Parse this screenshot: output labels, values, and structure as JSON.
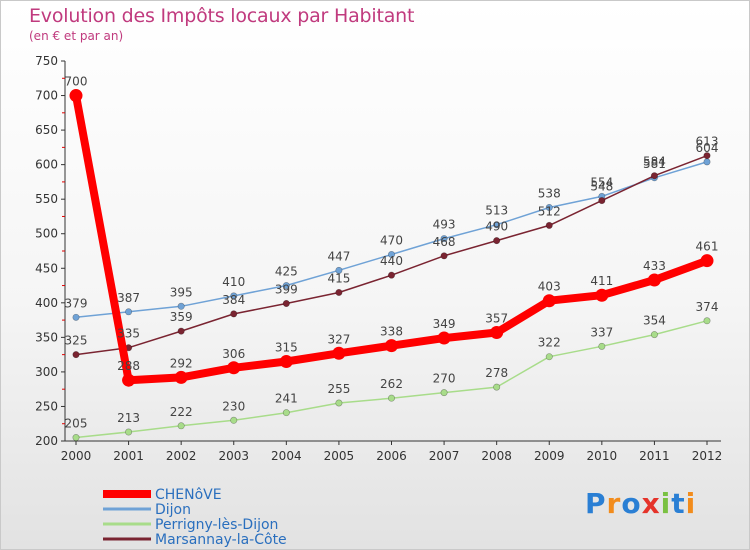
{
  "title": "Evolution des Impôts locaux par Habitant",
  "subtitle": "(en € et par an)",
  "logo": {
    "text": "Proxiti",
    "letters": [
      "P",
      "r",
      "o",
      "x",
      "i",
      "t",
      "i"
    ],
    "colors": [
      "#2a7fd4",
      "#f28c1c",
      "#2a7fd4",
      "#e5332a",
      "#7ac142",
      "#2a7fd4",
      "#f28c1c"
    ]
  },
  "chart_data": {
    "type": "line",
    "title": "Evolution des Impôts locaux par Habitant",
    "subtitle": "(en € et par an)",
    "xlabel": "",
    "ylabel": "",
    "x": [
      "2000",
      "2001",
      "2002",
      "2003",
      "2004",
      "2005",
      "2006",
      "2007",
      "2008",
      "2009",
      "2010",
      "2011",
      "2012"
    ],
    "ylim": [
      200,
      750
    ],
    "yticks": [
      200,
      250,
      300,
      350,
      400,
      450,
      500,
      550,
      600,
      650,
      700,
      750
    ],
    "grid": false,
    "legend_position": "bottom-left",
    "series": [
      {
        "name": "CHENôVE",
        "color": "#ff0000",
        "bold": true,
        "values": [
          700,
          288,
          292,
          306,
          315,
          327,
          338,
          349,
          357,
          403,
          411,
          433,
          461
        ]
      },
      {
        "name": "Dijon",
        "color": "#6fa2d6",
        "bold": false,
        "values": [
          379,
          387,
          395,
          410,
          425,
          447,
          470,
          493,
          513,
          538,
          554,
          581,
          604
        ]
      },
      {
        "name": "Perrigny-lès-Dijon",
        "color": "#a8dc8a",
        "bold": false,
        "values": [
          205,
          213,
          222,
          230,
          241,
          255,
          262,
          270,
          278,
          322,
          337,
          354,
          374
        ]
      },
      {
        "name": "Marsannay-la-Côte",
        "color": "#7a2431",
        "bold": false,
        "values": [
          325,
          335,
          359,
          384,
          399,
          415,
          440,
          468,
          490,
          512,
          548,
          584,
          613
        ]
      }
    ]
  }
}
